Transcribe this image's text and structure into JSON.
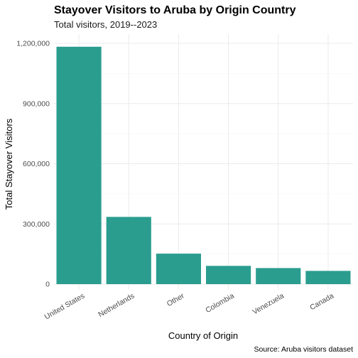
{
  "chart_data": {
    "type": "bar",
    "title": "Stayover Visitors to Aruba by Origin Country",
    "subtitle": "Total visitors, 2019--2023",
    "xlabel": "Country of Origin",
    "ylabel": "Total Stayover Visitors",
    "caption": "Source: Aruba visitors dataset",
    "categories": [
      "United States",
      "Netherlands",
      "Other",
      "Colombia",
      "Venezuela",
      "Canada"
    ],
    "values": [
      1183000,
      335000,
      152000,
      91000,
      80000,
      66000
    ],
    "ylim": [
      0,
      1200000
    ],
    "yticks": [
      0,
      300000,
      600000,
      900000,
      1200000
    ],
    "ytick_labels": [
      "0",
      "300,000",
      "600,000",
      "900,000",
      "1,200,000"
    ],
    "bar_color": "#2a9d8f",
    "grid": true,
    "legend": "none"
  }
}
